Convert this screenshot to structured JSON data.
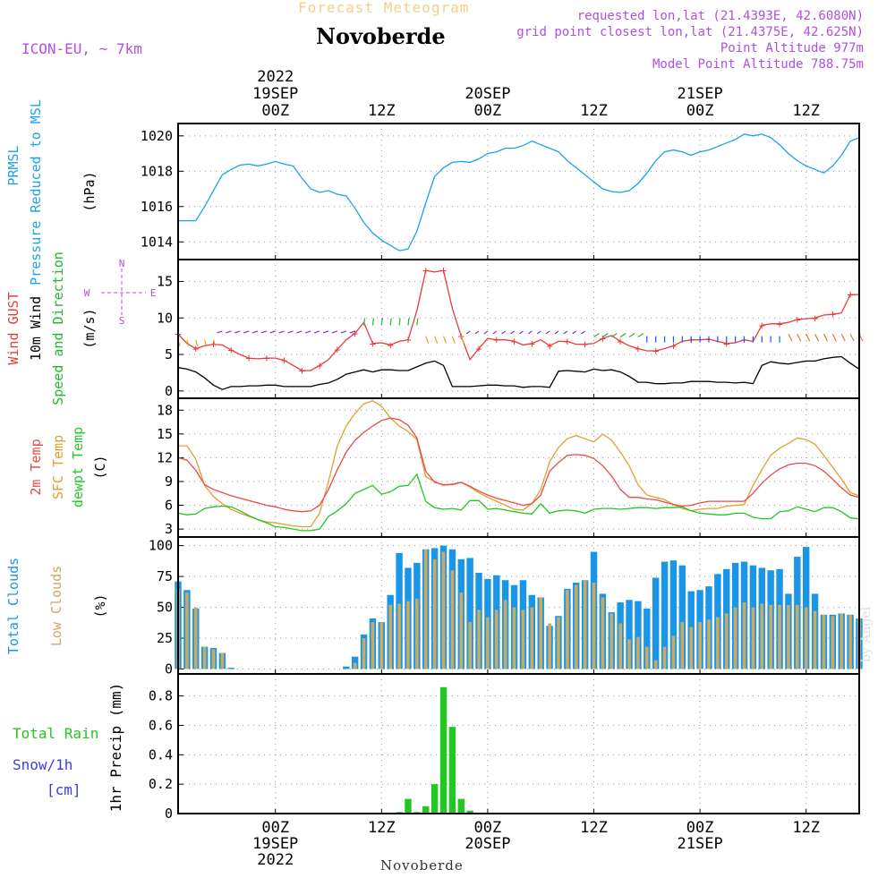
{
  "header": {
    "product": "Forecast Meteogram",
    "model": "ICON-EU, ~ 7km",
    "location": "Novoberde",
    "requested": "requested lon,lat (21.4393E, 42.6080N)",
    "grid_point": "grid point closest lon,lat (21.4375E, 42.625N)",
    "point_alt": "Point Altitude 977m",
    "model_alt": "Model Point Altitude 788.75m",
    "footer_location": "Novoberde",
    "credit": "by Angel"
  },
  "colors": {
    "prmsl": "#1aa3e8",
    "gust": "#e83c3c",
    "wind10m": "#000000",
    "wind_dir": "#22b82a",
    "t2m": "#e84a4a",
    "sfc": "#e0a030",
    "dewpt": "#22c822",
    "total_clouds": "#1a96e8",
    "low_clouds": "#c8aa64",
    "rain": "#22c822",
    "snow": "#3c3ce8",
    "purple": "#b050e0"
  },
  "time_axis": {
    "top_year": "2022",
    "top_labels": [
      {
        "t": 0,
        "lines": [
          "19SEP",
          "00Z"
        ]
      },
      {
        "t": 12,
        "lines": [
          "12Z"
        ]
      },
      {
        "t": 24,
        "lines": [
          "20SEP",
          "00Z"
        ]
      },
      {
        "t": 36,
        "lines": [
          "12Z"
        ]
      },
      {
        "t": 48,
        "lines": [
          "21SEP",
          "00Z"
        ]
      },
      {
        "t": 60,
        "lines": [
          "12Z"
        ]
      }
    ],
    "bottom_labels": [
      {
        "t": 0,
        "lines": [
          "00Z",
          "19SEP",
          "2022"
        ]
      },
      {
        "t": 12,
        "lines": [
          "12Z"
        ]
      },
      {
        "t": 24,
        "lines": [
          "00Z",
          "20SEP"
        ]
      },
      {
        "t": 36,
        "lines": [
          "12Z"
        ]
      },
      {
        "t": 48,
        "lines": [
          "00Z",
          "21SEP"
        ]
      },
      {
        "t": 60,
        "lines": [
          "12Z"
        ]
      }
    ],
    "t_start": -11,
    "t_end": 66
  },
  "panel_labels": {
    "pressure": [
      "PRMSL",
      "Pressure Reduced to MSL",
      "(hPa)"
    ],
    "wind": [
      "Wind GUST",
      "10m Wind",
      "Speed and Direction",
      "(m/s)"
    ],
    "compass": {
      "w": "W",
      "e": "E",
      "n": "N",
      "s": "S"
    },
    "temp": [
      "2m Temp",
      "SFC Temp",
      "dewpt Temp",
      "(C)"
    ],
    "clouds": [
      "Total Clouds",
      "Low Clouds",
      "(%)"
    ],
    "precip": [
      "Total Rain",
      "Snow/1h",
      "[cm]",
      "1hr Precip (mm)"
    ]
  },
  "chart_data": [
    {
      "type": "line",
      "name": "pressure",
      "ylabel": "(hPa)",
      "ylim": [
        1013,
        1020.7
      ],
      "yticks": [
        1014,
        1016,
        1018,
        1020
      ],
      "grid": true,
      "x": [
        -11,
        -10,
        -9,
        -8,
        -7,
        -6,
        -5,
        -4,
        -3,
        -2,
        -1,
        0,
        1,
        2,
        3,
        4,
        5,
        6,
        7,
        8,
        9,
        10,
        11,
        12,
        13,
        14,
        15,
        16,
        17,
        18,
        19,
        20,
        21,
        22,
        23,
        24,
        25,
        26,
        27,
        28,
        29,
        30,
        31,
        32,
        33,
        34,
        35,
        36,
        37,
        38,
        39,
        40,
        41,
        42,
        43,
        44,
        45,
        46,
        47,
        48,
        49,
        50,
        51,
        52,
        53,
        54,
        55,
        56,
        57,
        58,
        59,
        60,
        61,
        62,
        63,
        64,
        65,
        66
      ],
      "series": [
        {
          "name": "PRMSL",
          "values": [
            1015.2,
            1015.2,
            1015.2,
            1016.0,
            1016.9,
            1017.8,
            1018.1,
            1018.35,
            1018.4,
            1018.3,
            1018.4,
            1018.55,
            1018.4,
            1018.3,
            1017.6,
            1017.0,
            1016.8,
            1016.9,
            1016.7,
            1016.6,
            1015.9,
            1015.1,
            1014.5,
            1014.1,
            1013.8,
            1013.5,
            1013.6,
            1014.6,
            1016.2,
            1017.7,
            1018.2,
            1018.5,
            1018.55,
            1018.5,
            1018.7,
            1019.0,
            1019.1,
            1019.3,
            1019.3,
            1019.45,
            1019.7,
            1019.5,
            1019.3,
            1019.1,
            1018.6,
            1018.2,
            1017.8,
            1017.4,
            1017.0,
            1016.85,
            1016.8,
            1016.9,
            1017.3,
            1017.9,
            1018.6,
            1019.1,
            1019.2,
            1019.1,
            1018.9,
            1019.1,
            1019.2,
            1019.4,
            1019.6,
            1019.8,
            1020.1,
            1020.0,
            1020.1,
            1019.9,
            1019.5,
            1019.0,
            1018.6,
            1018.3,
            1018.1,
            1017.9,
            1018.3,
            1018.9,
            1019.7,
            1019.9
          ]
        }
      ]
    },
    {
      "type": "line",
      "name": "wind",
      "ylabel": "(m/s)",
      "ylim": [
        -1,
        18
      ],
      "yticks": [
        0,
        5,
        10,
        15
      ],
      "grid": true,
      "x": [
        -11,
        -10,
        -9,
        -8,
        -7,
        -6,
        -5,
        -4,
        -3,
        -2,
        -1,
        0,
        1,
        2,
        3,
        4,
        5,
        6,
        7,
        8,
        9,
        10,
        11,
        12,
        13,
        14,
        15,
        16,
        17,
        18,
        19,
        20,
        21,
        22,
        23,
        24,
        25,
        26,
        27,
        28,
        29,
        30,
        31,
        32,
        33,
        34,
        35,
        36,
        37,
        38,
        39,
        40,
        41,
        42,
        43,
        44,
        45,
        46,
        47,
        48,
        49,
        50,
        51,
        52,
        53,
        54,
        55,
        56,
        57,
        58,
        59,
        60,
        61,
        62,
        63,
        64,
        65,
        66
      ],
      "series": [
        {
          "name": "Wind GUST",
          "values": [
            7.8,
            6.5,
            5.8,
            6.2,
            6.4,
            6.3,
            5.6,
            5.0,
            4.5,
            4.4,
            4.5,
            4.5,
            4.2,
            3.5,
            2.8,
            2.8,
            3.5,
            4.3,
            5.7,
            7.0,
            7.9,
            9.4,
            6.5,
            6.6,
            6.3,
            6.8,
            7.0,
            11.0,
            16.5,
            16.3,
            16.5,
            11.3,
            7.5,
            4.3,
            5.8,
            7.2,
            7.0,
            7.0,
            6.8,
            6.3,
            6.5,
            7.0,
            6.2,
            6.8,
            6.8,
            6.4,
            6.4,
            6.5,
            7.2,
            7.6,
            6.8,
            6.2,
            5.8,
            5.5,
            5.5,
            5.8,
            6.2,
            6.8,
            7.0,
            7.0,
            7.1,
            6.8,
            6.5,
            6.6,
            7.0,
            6.8,
            9.0,
            9.2,
            9.2,
            9.4,
            9.8,
            9.9,
            10.0,
            10.4,
            10.5,
            10.7,
            13.2,
            13.2
          ]
        },
        {
          "name": "10m Wind",
          "values": [
            3.2,
            3.0,
            2.6,
            1.8,
            0.8,
            0.2,
            0.6,
            0.6,
            0.7,
            0.7,
            0.8,
            0.8,
            0.6,
            0.6,
            0.6,
            0.6,
            0.9,
            1.1,
            1.6,
            2.3,
            2.6,
            2.9,
            2.6,
            2.9,
            2.9,
            2.8,
            2.8,
            3.3,
            3.8,
            4.1,
            3.5,
            0.6,
            0.6,
            0.6,
            0.7,
            0.8,
            0.8,
            0.7,
            0.7,
            0.5,
            0.6,
            0.6,
            0.5,
            2.7,
            2.8,
            2.7,
            2.6,
            3.0,
            2.8,
            2.9,
            2.6,
            2.0,
            1.2,
            1.2,
            1.0,
            1.0,
            1.1,
            1.1,
            1.3,
            1.3,
            1.3,
            1.2,
            1.2,
            1.1,
            1.2,
            1.0,
            3.5,
            4.0,
            3.8,
            3.7,
            3.9,
            4.1,
            4.1,
            4.4,
            4.6,
            4.7,
            3.8,
            3.0
          ]
        }
      ]
    },
    {
      "type": "line",
      "name": "temperature",
      "ylabel": "(C)",
      "ylim": [
        2,
        19.5
      ],
      "yticks": [
        3,
        6,
        9,
        12,
        15,
        18
      ],
      "grid": true,
      "x": [
        -11,
        -10,
        -9,
        -8,
        -7,
        -6,
        -5,
        -4,
        -3,
        -2,
        -1,
        0,
        1,
        2,
        3,
        4,
        5,
        6,
        7,
        8,
        9,
        10,
        11,
        12,
        13,
        14,
        15,
        16,
        17,
        18,
        19,
        20,
        21,
        22,
        23,
        24,
        25,
        26,
        27,
        28,
        29,
        30,
        31,
        32,
        33,
        34,
        35,
        36,
        37,
        38,
        39,
        40,
        41,
        42,
        43,
        44,
        45,
        46,
        47,
        48,
        49,
        50,
        51,
        52,
        53,
        54,
        55,
        56,
        57,
        58,
        59,
        60,
        61,
        62,
        63,
        64,
        65,
        66
      ],
      "series": [
        {
          "name": "2m Temp",
          "values": [
            12.0,
            11.7,
            10.4,
            8.6,
            8.0,
            7.6,
            7.2,
            6.9,
            6.6,
            6.3,
            6.0,
            5.8,
            5.5,
            5.3,
            5.2,
            5.3,
            6.0,
            8.0,
            10.5,
            12.7,
            14.2,
            15.2,
            16.0,
            16.7,
            17.0,
            16.8,
            16.1,
            14.5,
            10.3,
            8.9,
            8.6,
            8.6,
            8.9,
            8.4,
            7.8,
            7.3,
            6.9,
            6.6,
            6.3,
            6.0,
            6.2,
            7.3,
            10.3,
            11.4,
            12.3,
            12.4,
            12.3,
            11.9,
            11.0,
            9.7,
            8.0,
            7.0,
            7.0,
            6.8,
            6.7,
            6.4,
            6.1,
            5.9,
            6.0,
            6.3,
            6.5,
            6.5,
            6.5,
            6.5,
            6.5,
            7.5,
            8.8,
            9.8,
            10.6,
            11.1,
            11.3,
            11.3,
            11.0,
            10.3,
            9.3,
            8.2,
            7.3,
            7.0
          ]
        },
        {
          "name": "SFC Temp",
          "values": [
            13.5,
            13.5,
            11.8,
            8.5,
            7.1,
            6.2,
            5.5,
            5.0,
            4.6,
            4.2,
            3.9,
            3.8,
            3.6,
            3.4,
            3.3,
            3.3,
            5.0,
            9.0,
            13.5,
            16.0,
            17.6,
            18.8,
            19.2,
            18.5,
            17.0,
            16.0,
            15.3,
            14.3,
            9.6,
            9.0,
            8.5,
            8.7,
            8.9,
            8.3,
            7.6,
            7.0,
            6.5,
            6.0,
            5.5,
            5.4,
            6.2,
            8.0,
            11.5,
            13.3,
            14.4,
            14.8,
            14.4,
            14.0,
            15.0,
            14.2,
            12.7,
            11.0,
            8.6,
            7.3,
            7.0,
            6.7,
            6.1,
            5.6,
            5.3,
            5.5,
            5.6,
            5.6,
            5.9,
            6.0,
            6.1,
            8.5,
            10.5,
            12.3,
            13.2,
            13.8,
            14.5,
            14.3,
            13.7,
            12.3,
            10.8,
            9.3,
            7.6,
            7.2
          ]
        },
        {
          "name": "dewpt Temp",
          "values": [
            5.0,
            4.8,
            4.9,
            5.6,
            5.8,
            5.9,
            5.8,
            5.3,
            4.7,
            4.2,
            3.8,
            3.3,
            3.2,
            3.0,
            2.8,
            2.8,
            3.0,
            4.6,
            5.3,
            6.2,
            7.5,
            8.0,
            8.5,
            7.4,
            7.7,
            8.4,
            8.5,
            9.9,
            6.5,
            5.7,
            5.5,
            5.6,
            5.4,
            6.6,
            6.6,
            5.5,
            5.6,
            5.4,
            5.2,
            5.0,
            4.9,
            6.2,
            5.0,
            5.3,
            5.4,
            5.3,
            5.0,
            5.5,
            5.6,
            5.6,
            5.5,
            5.6,
            5.7,
            5.7,
            5.6,
            5.7,
            5.7,
            5.8,
            5.3,
            5.0,
            4.9,
            4.8,
            4.8,
            5.0,
            5.0,
            4.5,
            4.3,
            4.3,
            5.2,
            5.3,
            5.8,
            5.5,
            5.2,
            5.7,
            5.7,
            5.2,
            4.4,
            4.3
          ]
        }
      ]
    },
    {
      "type": "bar",
      "name": "clouds",
      "ylabel": "(%)",
      "ylim": [
        -4,
        107
      ],
      "yticks": [
        0,
        25,
        50,
        75,
        100
      ],
      "grid": true,
      "x": [
        -11,
        -10,
        -9,
        -8,
        -7,
        -6,
        -5,
        -4,
        -3,
        -2,
        -1,
        0,
        1,
        2,
        3,
        4,
        5,
        6,
        7,
        8,
        9,
        10,
        11,
        12,
        13,
        14,
        15,
        16,
        17,
        18,
        19,
        20,
        21,
        22,
        23,
        24,
        25,
        26,
        27,
        28,
        29,
        30,
        31,
        32,
        33,
        34,
        35,
        36,
        37,
        38,
        39,
        40,
        41,
        42,
        43,
        44,
        45,
        46,
        47,
        48,
        49,
        50,
        51,
        52,
        53,
        54,
        55,
        56,
        57,
        58,
        59,
        60,
        61,
        62,
        63,
        64,
        65,
        66
      ],
      "series": [
        {
          "name": "Total Clouds",
          "values": [
            71,
            64,
            49,
            18,
            17,
            13,
            1,
            0,
            0,
            0,
            0,
            0,
            0,
            0,
            0,
            0,
            0,
            0,
            0,
            2,
            10,
            28,
            41,
            38,
            60,
            94,
            82,
            86,
            97,
            98,
            100,
            97,
            89,
            90,
            78,
            73,
            76,
            72,
            68,
            72,
            60,
            58,
            35,
            43,
            65,
            70,
            72,
            95,
            61,
            46,
            54,
            56,
            55,
            49,
            74,
            87,
            88,
            84,
            63,
            64,
            67,
            77,
            81,
            86,
            87,
            84,
            82,
            80,
            81,
            61,
            91,
            99,
            61,
            44,
            44,
            45,
            44,
            41
          ]
        },
        {
          "name": "Low Clouds",
          "values": [
            65,
            62,
            50,
            18,
            16,
            13,
            0,
            0,
            0,
            0,
            0,
            0,
            0,
            0,
            0,
            0,
            0,
            0,
            0,
            0,
            5,
            25,
            38,
            38,
            52,
            53,
            55,
            57,
            97,
            89,
            95,
            80,
            62,
            38,
            48,
            42,
            48,
            56,
            50,
            48,
            50,
            58,
            37,
            42,
            64,
            68,
            72,
            70,
            58,
            45,
            37,
            24,
            26,
            18,
            7,
            18,
            27,
            38,
            34,
            38,
            40,
            42,
            45,
            50,
            54,
            50,
            53,
            52,
            52,
            52,
            52,
            50,
            47,
            44,
            43,
            45,
            44,
            41
          ]
        }
      ]
    },
    {
      "type": "bar",
      "name": "precip",
      "ylabel": "1hr Precip (mm)",
      "ylim": [
        0,
        0.95
      ],
      "yticks": [
        0,
        0.2,
        0.4,
        0.6,
        0.8
      ],
      "grid": true,
      "x": [
        14,
        15,
        16,
        17,
        18,
        19,
        20,
        21,
        22
      ],
      "series": [
        {
          "name": "Total Rain",
          "values": [
            0.01,
            0.1,
            0.01,
            0.05,
            0.2,
            0.86,
            0.59,
            0.1,
            0.02
          ]
        }
      ]
    }
  ]
}
